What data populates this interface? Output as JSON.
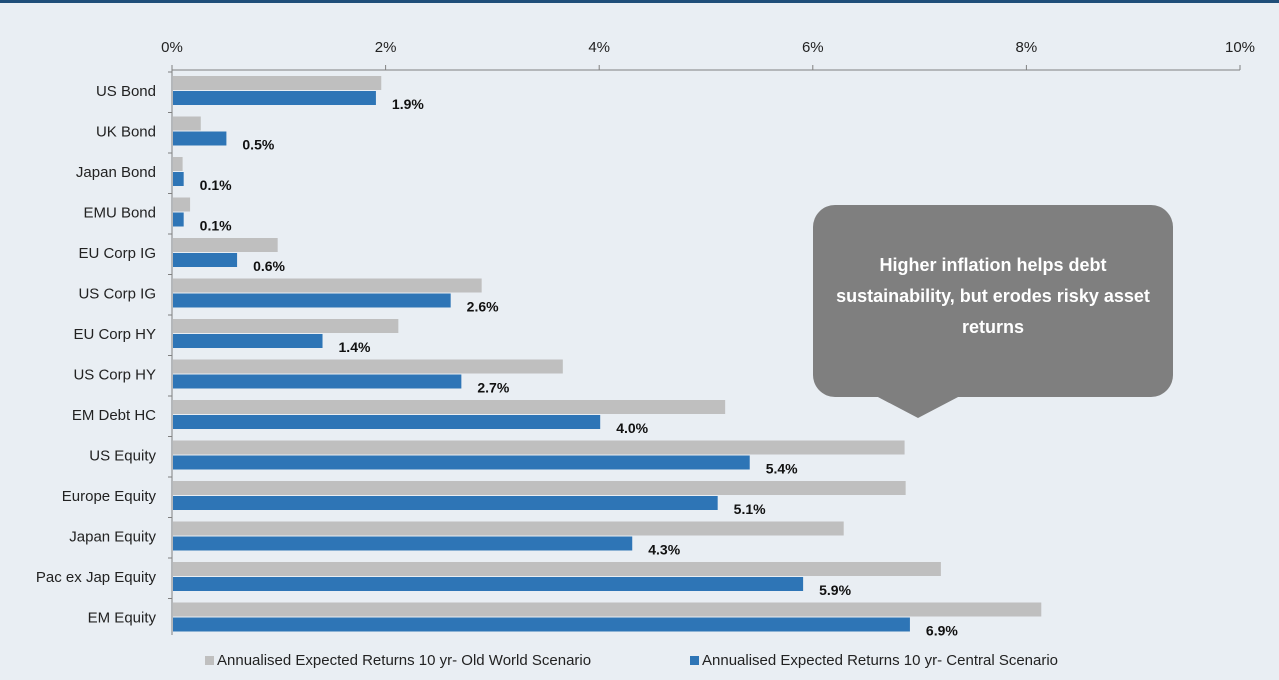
{
  "chart_data": {
    "type": "bar",
    "orientation": "horizontal",
    "categories": [
      "US Bond",
      "UK Bond",
      "Japan Bond",
      "EMU Bond",
      "EU Corp IG",
      "US Corp IG",
      "EU Corp HY",
      "US Corp HY",
      "EM Debt HC",
      "US Equity",
      "Europe Equity",
      "Japan Equity",
      "Pac ex Jap Equity",
      "EM Equity"
    ],
    "series": [
      {
        "name": "Annualised Expected Returns 10 yr- Old World Scenario",
        "color": "#bfbfbf",
        "values": [
          1.95,
          0.26,
          0.09,
          0.16,
          0.98,
          2.89,
          2.11,
          3.65,
          5.17,
          6.85,
          6.86,
          6.28,
          7.19,
          8.13
        ]
      },
      {
        "name": "Annualised Expected Returns 10 yr- Central Scenario",
        "color": "#2e75b6",
        "values": [
          1.9,
          0.5,
          0.1,
          0.1,
          0.6,
          2.6,
          1.4,
          2.7,
          4.0,
          5.4,
          5.1,
          4.3,
          5.9,
          6.9
        ],
        "data_labels": [
          "1.9%",
          "0.5%",
          "0.1%",
          "0.1%",
          "0.6%",
          "2.6%",
          "1.4%",
          "2.7%",
          "4.0%",
          "5.4%",
          "5.1%",
          "4.3%",
          "5.9%",
          "6.9%"
        ]
      }
    ],
    "x_ticks": [
      "0%",
      "2%",
      "4%",
      "6%",
      "8%",
      "10%"
    ],
    "xlim": [
      0,
      10
    ],
    "x_axis_position": "top",
    "grid": false,
    "legend_position": "bottom",
    "annotation": "Higher inflation helps debt sustainability, but erodes risky asset returns"
  }
}
